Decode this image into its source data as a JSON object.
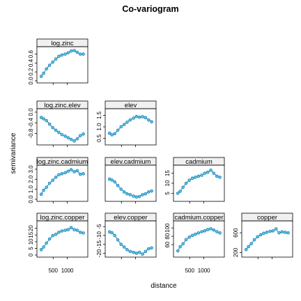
{
  "chart_data": {
    "type": "line",
    "title": "Co-variogram",
    "xlabel": "distance",
    "ylabel": "semivariance",
    "style": {
      "line_color": "#1f7fbf",
      "point_fill": "#5bc8d8",
      "strip_color": "#f0f0f0"
    },
    "x_ticks": [
      "500",
      "1000"
    ],
    "x_tick_values": [
      500,
      1000
    ],
    "x": [
      79,
      163,
      263,
      372,
      485,
      595,
      700,
      808,
      926,
      1030,
      1136,
      1245,
      1350,
      1460,
      1566
    ],
    "xlim": [
      0,
      1650
    ],
    "panels": [
      {
        "label": "log.zinc",
        "row": 0,
        "col": 0,
        "y_ticks": [
          "0.0",
          "0.2",
          "0.4",
          "0.6"
        ],
        "y_tick_values": [
          0.0,
          0.2,
          0.4,
          0.6
        ],
        "ylim": [
          0,
          0.72
        ],
        "values": [
          0.1,
          0.17,
          0.27,
          0.35,
          0.42,
          0.49,
          0.55,
          0.58,
          0.6,
          0.63,
          0.67,
          0.68,
          0.64,
          0.6,
          0.6
        ]
      },
      {
        "label": "log.zinc.elev",
        "row": 1,
        "col": 0,
        "y_ticks": [
          "-0.8",
          "-0.4",
          "0.0"
        ],
        "y_tick_values": [
          -0.8,
          -0.4,
          0.0
        ],
        "ylim": [
          -1.15,
          0.05
        ],
        "values": [
          -0.2,
          -0.25,
          -0.32,
          -0.45,
          -0.58,
          -0.68,
          -0.76,
          -0.84,
          -0.9,
          -0.96,
          -1.02,
          -1.08,
          -1.0,
          -0.88,
          -0.82
        ]
      },
      {
        "label": "log.zinc.cadmium",
        "row": 2,
        "col": 0,
        "y_ticks": [
          "0.0",
          "1.0",
          "2.0",
          "3.0"
        ],
        "y_tick_values": [
          0.0,
          1.0,
          2.0,
          3.0
        ],
        "ylim": [
          0,
          3.2
        ],
        "values": [
          0.5,
          0.9,
          1.2,
          1.6,
          1.9,
          2.2,
          2.45,
          2.55,
          2.65,
          2.8,
          2.95,
          2.75,
          2.85,
          2.5,
          2.55
        ]
      },
      {
        "label": "log.zinc.copper",
        "row": 3,
        "col": 0,
        "y_ticks": [
          "0",
          "5",
          "10",
          "15",
          "20"
        ],
        "y_tick_values": [
          0,
          5,
          10,
          15,
          20
        ],
        "ylim": [
          0,
          24
        ],
        "values": [
          4.0,
          6.0,
          9.0,
          12.0,
          14.5,
          15.5,
          17.0,
          18.0,
          18.5,
          19.0,
          20.5,
          19.0,
          18.5,
          17.0,
          16.5
        ]
      },
      {
        "label": "elev",
        "row": 1,
        "col": 1,
        "y_ticks": [
          "0.5",
          "1.0",
          "1.5"
        ],
        "y_tick_values": [
          0.5,
          1.0,
          1.5
        ],
        "ylim": [
          0.3,
          1.7
        ],
        "values": [
          0.72,
          0.65,
          0.7,
          0.85,
          1.0,
          1.1,
          1.2,
          1.3,
          1.38,
          1.45,
          1.42,
          1.44,
          1.4,
          1.3,
          1.22
        ]
      },
      {
        "label": "elev.cadmium",
        "row": 2,
        "col": 1,
        "y_ticks": [],
        "y_tick_values": [],
        "ylim": [
          -3.2,
          0.3
        ],
        "values": [
          -1.0,
          -1.1,
          -1.3,
          -1.7,
          -2.1,
          -2.4,
          -2.6,
          -2.7,
          -2.85,
          -2.95,
          -2.9,
          -2.7,
          -2.6,
          -2.4,
          -2.3
        ]
      },
      {
        "label": "elev.copper",
        "row": 3,
        "col": 1,
        "y_ticks": [
          "-20",
          "-15",
          "-10",
          "-5"
        ],
        "y_tick_values": [
          -20,
          -15,
          -10,
          -5
        ],
        "ylim": [
          -21,
          -3
        ],
        "values": [
          -8.0,
          -8.5,
          -10.0,
          -12.5,
          -15.0,
          -16.5,
          -18.0,
          -19.0,
          -19.5,
          -20.0,
          -19.5,
          -20.5,
          -19.0,
          -17.5,
          -17.0
        ]
      },
      {
        "label": "cadmium",
        "row": 2,
        "col": 2,
        "y_ticks": [
          "5",
          "10",
          "15"
        ],
        "y_tick_values": [
          5,
          10,
          15
        ],
        "ylim": [
          2,
          18
        ],
        "values": [
          5.0,
          6.0,
          8.0,
          10.0,
          11.5,
          12.5,
          13.0,
          13.5,
          14.0,
          15.0,
          15.5,
          16.5,
          15.0,
          13.5,
          13.0
        ]
      },
      {
        "label": "cadmium.copper",
        "row": 3,
        "col": 2,
        "y_ticks": [
          "60",
          "80",
          "100"
        ],
        "y_tick_values": [
          60,
          80,
          100
        ],
        "ylim": [
          35,
          112
        ],
        "values": [
          45,
          55,
          62,
          72,
          78,
          82,
          85,
          88,
          91,
          93,
          96,
          98,
          95,
          91,
          88
        ]
      },
      {
        "label": "copper",
        "row": 3,
        "col": 3,
        "y_ticks": [
          "200",
          "600"
        ],
        "y_tick_values": [
          200,
          600
        ],
        "ylim": [
          150,
          800
        ],
        "values": [
          260,
          320,
          380,
          460,
          520,
          560,
          590,
          610,
          630,
          640,
          680,
          600,
          620,
          610,
          600
        ]
      }
    ]
  }
}
